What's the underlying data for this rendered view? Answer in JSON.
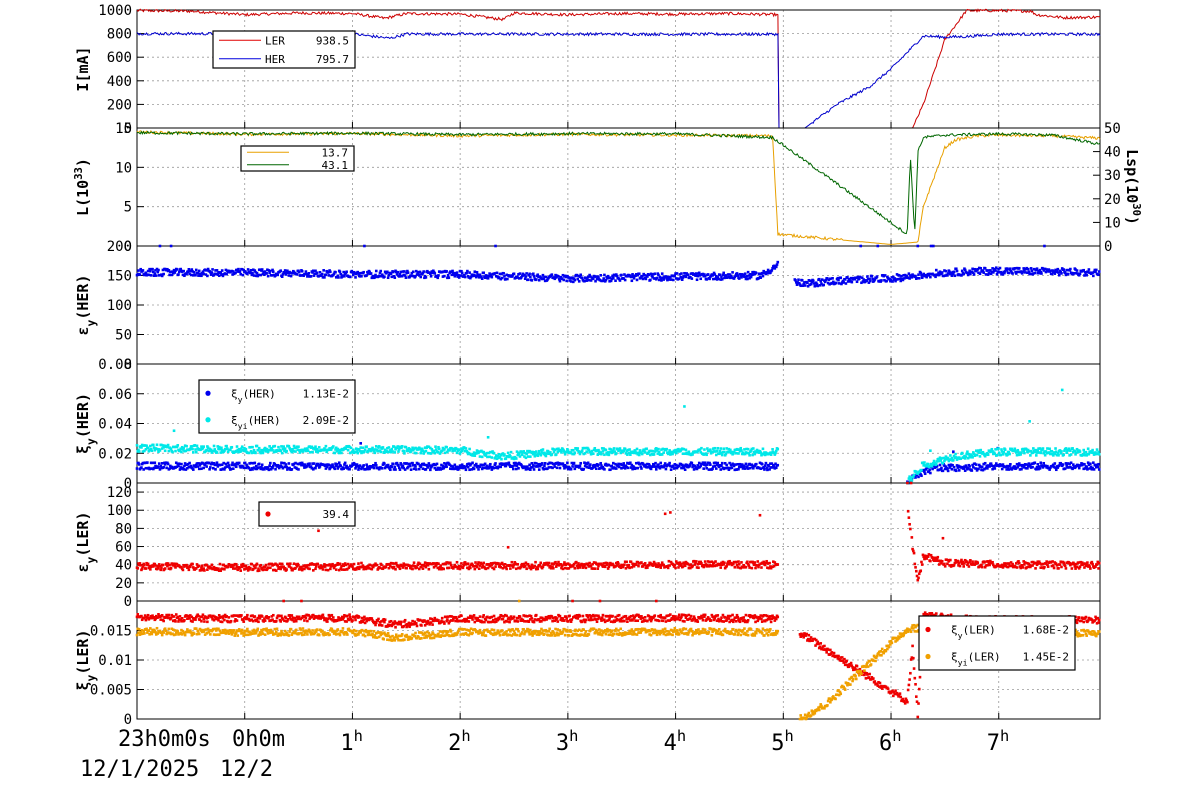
{
  "chart_data": {
    "type": "line",
    "time_axis": {
      "start": "23h0m0s",
      "date_start": "12/1/2025",
      "date_next": "12/2",
      "midnight_label": "0h0m",
      "ticks": [
        "1h",
        "2h",
        "3h",
        "4h",
        "5h",
        "6h",
        "7h"
      ],
      "range_hours": [
        -1.0,
        7.94
      ]
    },
    "panels": [
      {
        "id": "current",
        "ylabel": "I[mA]",
        "ylim": [
          0,
          1000
        ],
        "yticks": [
          "0",
          "200",
          "400",
          "600",
          "800",
          "1000"
        ],
        "legend": [
          {
            "name": "LER",
            "value": "938.5",
            "color": "#e00000"
          },
          {
            "name": "HER",
            "value": "795.7",
            "color": "#0000dd"
          }
        ],
        "series": [
          {
            "name": "LER",
            "color": "#cc0000",
            "x": [
              -1.0,
              -0.5,
              0,
              0.5,
              1.0,
              1.3,
              1.5,
              2.0,
              2.4,
              2.5,
              3.0,
              3.5,
              4.0,
              4.5,
              4.95,
              4.96,
              5.0,
              5.5,
              6.0,
              6.2,
              6.3,
              6.5,
              6.7,
              6.8,
              7.0,
              7.3,
              7.35,
              7.6,
              7.94
            ],
            "y": [
              995,
              990,
              960,
              975,
              970,
              930,
              970,
              965,
              920,
              975,
              960,
              970,
              965,
              970,
              960,
              0,
              0,
              0,
              0,
              0,
              200,
              750,
              995,
              995,
              995,
              990,
              960,
              935,
              940
            ]
          },
          {
            "name": "HER",
            "color": "#0000cc",
            "x": [
              -1.0,
              0,
              1.0,
              1.35,
              1.5,
              2.0,
              3.0,
              4.0,
              4.95,
              4.96,
              5.0,
              5.2,
              5.5,
              5.8,
              6.0,
              6.3,
              6.5,
              6.7,
              7.0,
              7.5,
              7.94
            ],
            "y": [
              800,
              798,
              797,
              760,
              797,
              796,
              796,
              795,
              795,
              0,
              0,
              0,
              200,
              350,
              500,
              780,
              770,
              775,
              795,
              795,
              795
            ]
          }
        ]
      },
      {
        "id": "luminosity",
        "ylabel": "L(10^33)",
        "ylabel_right": "Lsp(10^30)",
        "ylim": [
          0,
          15
        ],
        "yticks": [
          "0",
          "5",
          "10",
          "15"
        ],
        "ylim_right": [
          0,
          50
        ],
        "yticks_right": [
          "0",
          "10",
          "20",
          "30",
          "40",
          "50"
        ],
        "legend": [
          {
            "name": "",
            "value": "13.7",
            "color": "#e8a000"
          },
          {
            "name": "",
            "value": "43.1",
            "color": "#006600"
          }
        ],
        "series": [
          {
            "name": "",
            "color": "#e8a000",
            "x": [
              -1.0,
              0,
              1.0,
              2.0,
              3.0,
              4.0,
              4.9,
              4.95,
              6.0,
              6.25,
              6.3,
              6.5,
              6.6,
              6.8,
              7.0,
              7.5,
              7.94
            ],
            "y": [
              14.5,
              14.2,
              14.3,
              14.0,
              14.2,
              14.1,
              14.0,
              1.5,
              0.2,
              0.5,
              5.0,
              12.5,
              13.5,
              14.0,
              14.1,
              14.0,
              13.7
            ]
          },
          {
            "name": "",
            "color": "#006600",
            "axis": "right",
            "x": [
              -1.0,
              0,
              1.0,
              2.0,
              3.0,
              4.0,
              4.9,
              6.15,
              6.18,
              6.22,
              6.25,
              6.3,
              6.5,
              7.0,
              7.5,
              7.94
            ],
            "y": [
              48,
              47.5,
              47.8,
              47.2,
              47.6,
              47.5,
              46,
              5,
              38,
              5,
              40,
              46,
              47,
              47.5,
              47,
              43.1
            ]
          }
        ]
      },
      {
        "id": "emit_her",
        "ylabel": "εy(HER)",
        "ylim": [
          0,
          200
        ],
        "yticks": [
          "0",
          "50",
          "100",
          "150",
          "200"
        ],
        "series": [
          {
            "name": "",
            "color": "#0000ee",
            "x": [
              -1.0,
              0,
              1.0,
              2.0,
              3.0,
              4.0,
              4.8,
              5.0,
              5.1,
              5.2,
              5.4,
              6.0,
              6.5,
              7.0,
              7.94
            ],
            "y": [
              155,
              155,
              152,
              152,
              145,
              148,
              150,
              175,
              140,
              135,
              140,
              145,
              155,
              158,
              155
            ]
          }
        ]
      },
      {
        "id": "xi_her",
        "ylabel": "ξy(HER)",
        "ylim": [
          0,
          0.08
        ],
        "yticks": [
          "0",
          "0.02",
          "0.04",
          "0.06",
          "0.08"
        ],
        "legend": [
          {
            "name": "ξy(HER)",
            "value": "1.13E-2",
            "color": "#0000ee"
          },
          {
            "name": "ξyi(HER)",
            "value": "2.09E-2",
            "color": "#00e8e8"
          }
        ],
        "series": [
          {
            "name": "ξy(HER)",
            "color": "#0000ee",
            "x": [
              -1.0,
              0,
              1.0,
              2.0,
              3.0,
              4.0,
              4.95,
              6.15,
              6.25,
              6.4,
              7.0,
              7.94
            ],
            "y": [
              0.0115,
              0.0112,
              0.0113,
              0.0112,
              0.0113,
              0.0113,
              0.0112,
              0.0002,
              0.005,
              0.01,
              0.0113,
              0.0113
            ]
          },
          {
            "name": "ξyi(HER)",
            "color": "#00e8e8",
            "x": [
              -1.0,
              0,
              1.0,
              2.0,
              2.4,
              3.0,
              4.0,
              4.95,
              6.15,
              6.3,
              6.6,
              7.0,
              7.94
            ],
            "y": [
              0.0235,
              0.0225,
              0.0225,
              0.022,
              0.018,
              0.0215,
              0.021,
              0.021,
              0.0005,
              0.012,
              0.018,
              0.021,
              0.0209
            ]
          }
        ]
      },
      {
        "id": "emit_ler",
        "ylabel": "εy(LER)",
        "ylim": [
          0,
          130
        ],
        "yticks": [
          "0",
          "20",
          "40",
          "60",
          "80",
          "100",
          "120"
        ],
        "legend": [
          {
            "name": "",
            "value": "39.4",
            "color": "#ee0000"
          }
        ],
        "series": [
          {
            "name": "",
            "color": "#ee0000",
            "x": [
              -1.0,
              0,
              1.0,
              2.0,
              3.0,
              4.0,
              4.95,
              6.15,
              6.2,
              6.25,
              6.3,
              6.5,
              7.0,
              7.94
            ],
            "y": [
              38,
              37,
              38,
              39,
              39,
              40,
              40,
              110,
              60,
              20,
              50,
              42,
              40,
              39.4
            ]
          }
        ]
      },
      {
        "id": "xi_ler",
        "ylabel": "ξy(LER)",
        "ylim": [
          0,
          0.02
        ],
        "yticks": [
          "0",
          "0.005",
          "0.01",
          "0.015"
        ],
        "legend": [
          {
            "name": "ξy(LER)",
            "value": "1.68E-2",
            "color": "#ee0000"
          },
          {
            "name": "ξyi(LER)",
            "value": "1.45E-2",
            "color": "#f0a000"
          }
        ],
        "series": [
          {
            "name": "ξy(LER)",
            "color": "#ee0000",
            "x": [
              -1.0,
              0,
              1.0,
              1.4,
              2.0,
              3.0,
              4.0,
              4.95,
              6.15,
              6.2,
              6.25,
              6.3,
              6.6,
              7.0,
              7.94
            ],
            "y": [
              0.0172,
              0.017,
              0.0171,
              0.016,
              0.017,
              0.017,
              0.0171,
              0.017,
              0.003,
              0.012,
              0.0005,
              0.0175,
              0.017,
              0.0168,
              0.0168
            ]
          },
          {
            "name": "ξyi(LER)",
            "color": "#f0a000",
            "x": [
              -1.0,
              0,
              1.0,
              1.4,
              2.0,
              3.0,
              4.0,
              4.95,
              5.15,
              5.4,
              5.8,
              6.1,
              6.2,
              6.4,
              7.0,
              7.94
            ],
            "y": [
              0.0148,
              0.0147,
              0.0148,
              0.0138,
              0.0147,
              0.0147,
              0.0148,
              0.0147,
              0.0,
              0.0025,
              0.0095,
              0.0145,
              0.0155,
              0.0148,
              0.0146,
              0.0145
            ]
          }
        ]
      }
    ]
  }
}
